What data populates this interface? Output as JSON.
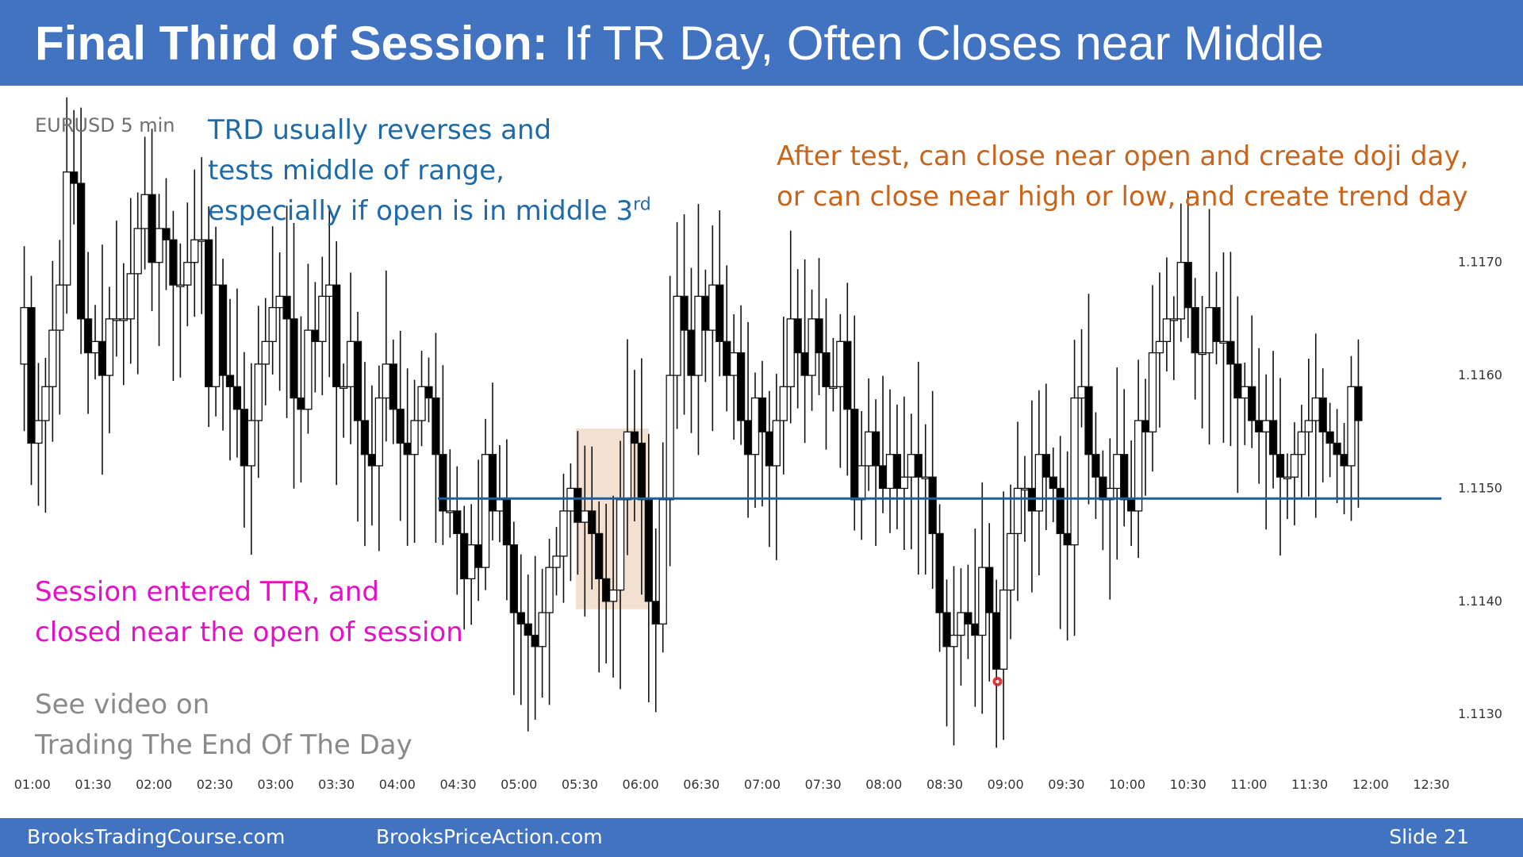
{
  "slide": {
    "title_bold": "Final Third of Session:",
    "title_rest": "If TR Day, Often Closes near Middle",
    "symbol_label": "EURUSD 5 min",
    "notes": {
      "blue": [
        "TRD usually reverses and",
        "tests middle of range,",
        "especially if open is in middle 3"
      ],
      "blue_sup": "rd",
      "orange": [
        "After test, can close near open and create doji day,",
        "or can close near high or low, and create trend day"
      ],
      "magenta": [
        "Session entered TTR, and",
        "closed near the open of session"
      ],
      "gray": [
        "See video on",
        "Trading The End Of The Day"
      ]
    },
    "footer": {
      "left": "BrooksTradingCourse.com",
      "middle": "BrooksPriceAction.com",
      "right": "Slide  21"
    },
    "colors": {
      "header_bg": "#4273c0",
      "bull_candle": "#ffffff",
      "bear_candle": "#000000",
      "level_line": "#1f5f9c",
      "highlight_box": "#f0dcc8",
      "marker": "#e02020"
    }
  },
  "chart_data": {
    "type": "candlestick",
    "symbol": "EURUSD",
    "timeframe": "5 min",
    "x_tick_labels": [
      "01:00",
      "01:30",
      "02:00",
      "02:30",
      "03:00",
      "03:30",
      "04:00",
      "04:30",
      "05:00",
      "05:30",
      "06:00",
      "06:30",
      "07:00",
      "07:30",
      "08:00",
      "08:30",
      "09:00",
      "09:30",
      "10:00",
      "10:30",
      "11:00",
      "11:30",
      "12:00",
      "12:30"
    ],
    "y_tick_labels": [
      "1.1170",
      "1.1160",
      "1.1150",
      "1.1140",
      "1.1130"
    ],
    "y_ticks": [
      1.117,
      1.116,
      1.115,
      1.114,
      1.113
    ],
    "ylim": [
      1.11258,
      1.11855
    ],
    "x_range_minutes": [
      55,
      760
    ],
    "horizontal_line": {
      "price": 1.11491,
      "from_minutes": 260,
      "to_minutes": 755
    },
    "highlight_zone": {
      "from_minutes": 328,
      "to_minutes": 364,
      "price_low": 1.11393,
      "price_high": 1.11553
    },
    "marker": {
      "minutes": 536,
      "price": 1.11329
    },
    "closes": [
      1.1166,
      1.1154,
      1.1156,
      1.1159,
      1.1164,
      1.1168,
      1.1178,
      1.1177,
      1.1165,
      1.1162,
      1.1163,
      1.116,
      1.1165,
      1.1165,
      1.1165,
      1.1169,
      1.1173,
      1.1176,
      1.117,
      1.1173,
      1.1172,
      1.1168,
      1.1168,
      1.117,
      1.1172,
      1.1172,
      1.1159,
      1.1168,
      1.116,
      1.1159,
      1.1157,
      1.1152,
      1.1156,
      1.1161,
      1.1163,
      1.1166,
      1.1167,
      1.1165,
      1.1158,
      1.1157,
      1.1164,
      1.1163,
      1.1167,
      1.1168,
      1.1159,
      1.1159,
      1.1163,
      1.1156,
      1.1153,
      1.1152,
      1.1158,
      1.1161,
      1.1157,
      1.1154,
      1.1153,
      1.1156,
      1.1159,
      1.1158,
      1.1153,
      1.1148,
      1.1148,
      1.1146,
      1.1142,
      1.1145,
      1.1143,
      1.1153,
      1.1148,
      1.1149,
      1.1145,
      1.1139,
      1.1138,
      1.1137,
      1.1136,
      1.1139,
      1.1143,
      1.1144,
      1.1148,
      1.115,
      1.1147,
      1.1148,
      1.1146,
      1.1142,
      1.114,
      1.1141,
      1.1149,
      1.1155,
      1.1154,
      1.1149,
      1.114,
      1.1138,
      1.1149,
      1.116,
      1.1167,
      1.1164,
      1.116,
      1.1167,
      1.1164,
      1.1168,
      1.1163,
      1.116,
      1.1162,
      1.1156,
      1.1153,
      1.1158,
      1.1155,
      1.1152,
      1.1156,
      1.1159,
      1.1165,
      1.1162,
      1.116,
      1.1165,
      1.1162,
      1.1159,
      1.1159,
      1.1163,
      1.1157,
      1.1149,
      1.1152,
      1.1155,
      1.1152,
      1.115,
      1.1153,
      1.115,
      1.1151,
      1.1153,
      1.1151,
      1.1151,
      1.1146,
      1.1139,
      1.1136,
      1.1137,
      1.1139,
      1.1138,
      1.1137,
      1.1143,
      1.1139,
      1.1134,
      1.1141,
      1.1146,
      1.115,
      1.115,
      1.1148,
      1.1153,
      1.1151,
      1.115,
      1.1146,
      1.1145,
      1.1158,
      1.1159,
      1.1153,
      1.1151,
      1.1149,
      1.115,
      1.1153,
      1.1149,
      1.1148,
      1.1156,
      1.1155,
      1.1162,
      1.1163,
      1.1165,
      1.1165,
      1.117,
      1.1166,
      1.1162,
      1.1162,
      1.1166,
      1.1163,
      1.1163,
      1.1161,
      1.1158,
      1.1159,
      1.1156,
      1.1155,
      1.1156,
      1.1153,
      1.1151,
      1.1151,
      1.1153,
      1.1155,
      1.1156,
      1.1158,
      1.1155,
      1.1154,
      1.1153,
      1.1152,
      1.1159,
      1.1156
    ]
  }
}
